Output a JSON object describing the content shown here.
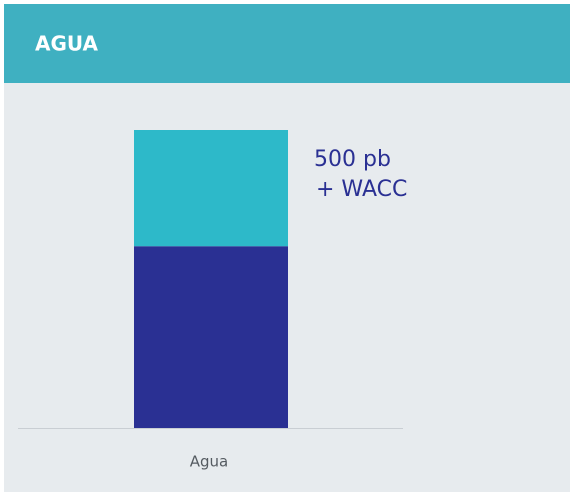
{
  "chart_data": {
    "type": "stacked_bar",
    "title": "AGUA",
    "categories": [
      "Agua"
    ],
    "series": [
      {
        "color": "#2a3093",
        "values": [
          61
        ]
      },
      {
        "color": "#2db9c9",
        "values": [
          39
        ]
      }
    ],
    "annotation": [
      "500 pb",
      "+ WACC"
    ]
  }
}
